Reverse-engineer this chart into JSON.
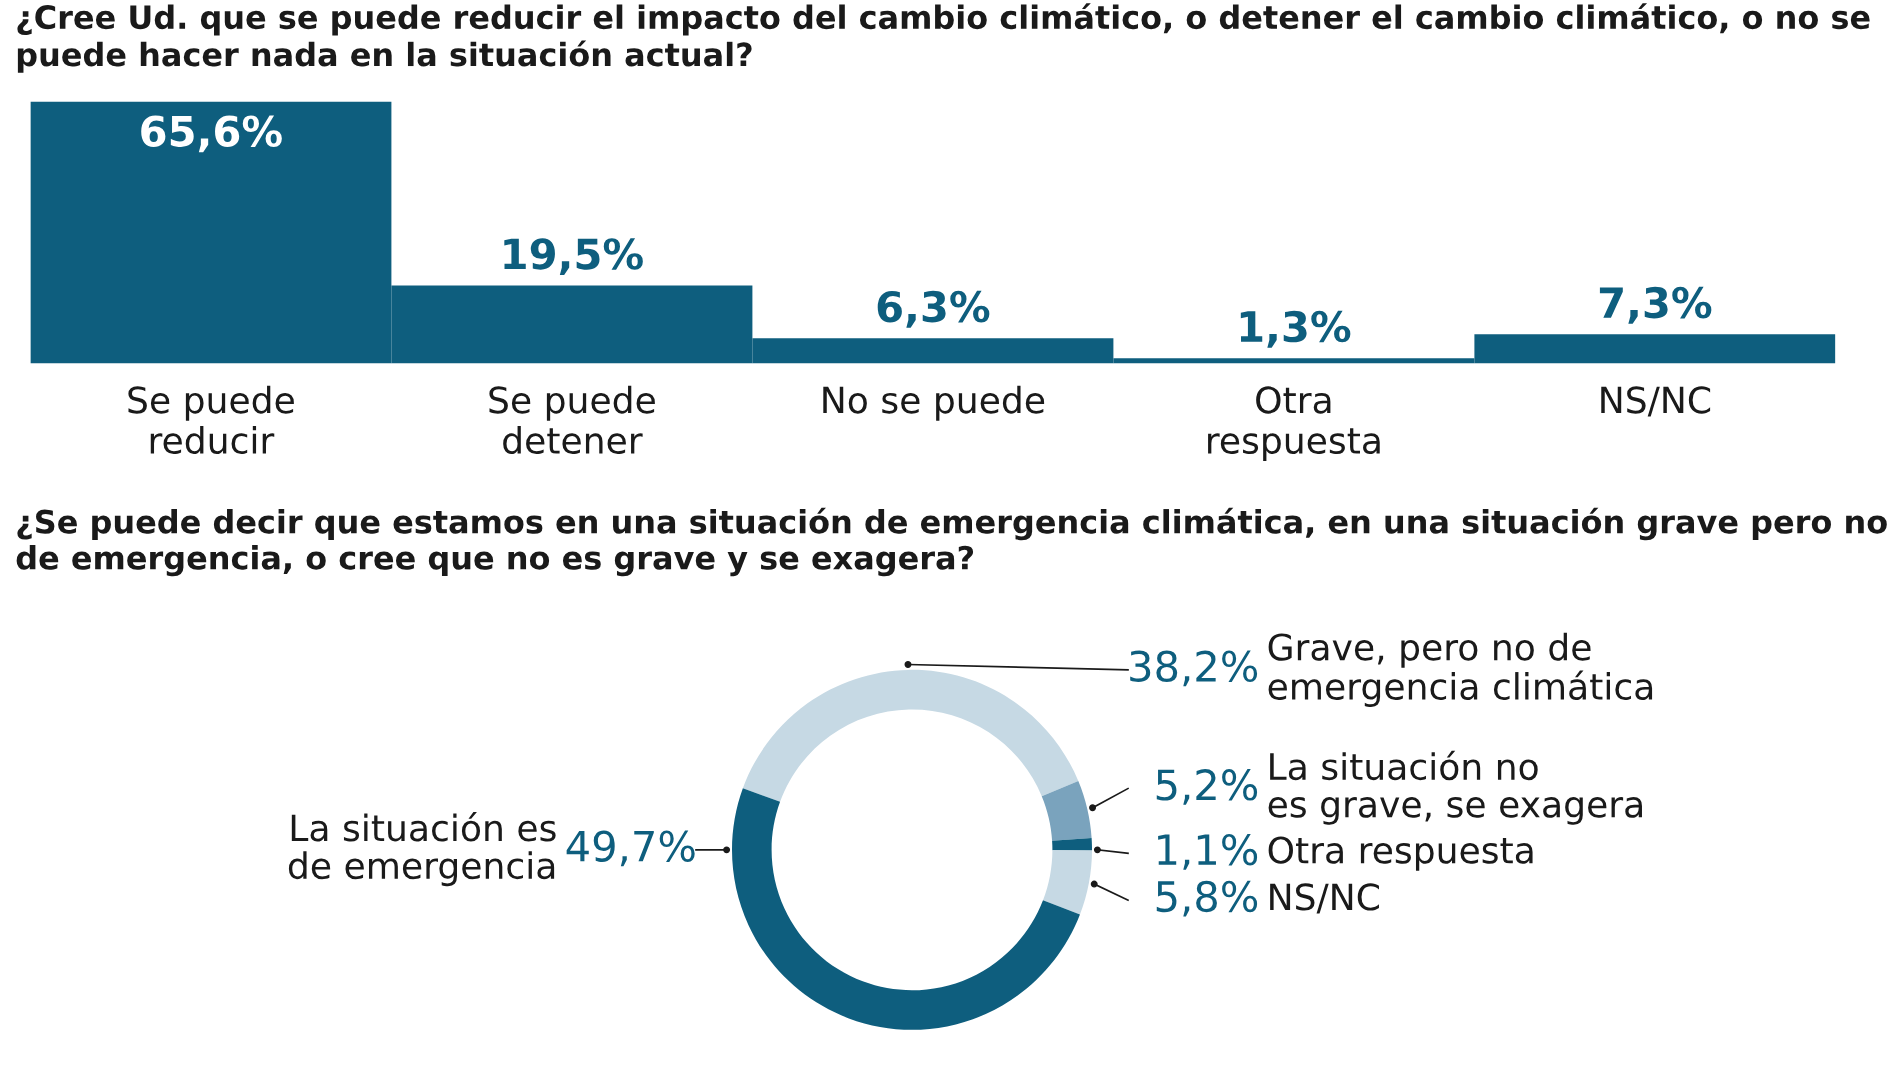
{
  "chart_data": [
    {
      "type": "bar",
      "title": "¿Cree Ud. que se puede reducir el impacto del cambio climático, o detener el cambio climático, o no se puede hacer nada en la situación actual?",
      "categories": [
        "Se puede\nreducir",
        "Se puede\ndetener",
        "No se puede",
        "Otra\nrespuesta",
        "NS/NC"
      ],
      "values": [
        65.6,
        19.5,
        6.3,
        1.3,
        7.3
      ],
      "value_labels": [
        "65,6%",
        "19,5%",
        "6,3%",
        "1,3%",
        "7,3%"
      ],
      "color": "#0e5e7e"
    },
    {
      "type": "donut",
      "title": "¿Se puede decir que estamos en una situación de emergencia climática, en una situación grave pero no de emergencia, o cree que no es grave y se exagera?",
      "categories": [
        "Grave, pero no de\nemergencia climática",
        "La situación no\nes grave, se exagera",
        "Otra respuesta",
        "NS/NC",
        "La situación es\nde emergencia"
      ],
      "values": [
        38.2,
        5.2,
        1.1,
        5.8,
        49.7
      ],
      "value_labels": [
        "38,2%",
        "5,2%",
        "1,1%",
        "5,8%",
        "49,7%"
      ],
      "colors": [
        "#c6d9e4",
        "#7aa3bd",
        "#0e5e7e",
        "#c6d9e4",
        "#0e5e7e"
      ]
    }
  ]
}
